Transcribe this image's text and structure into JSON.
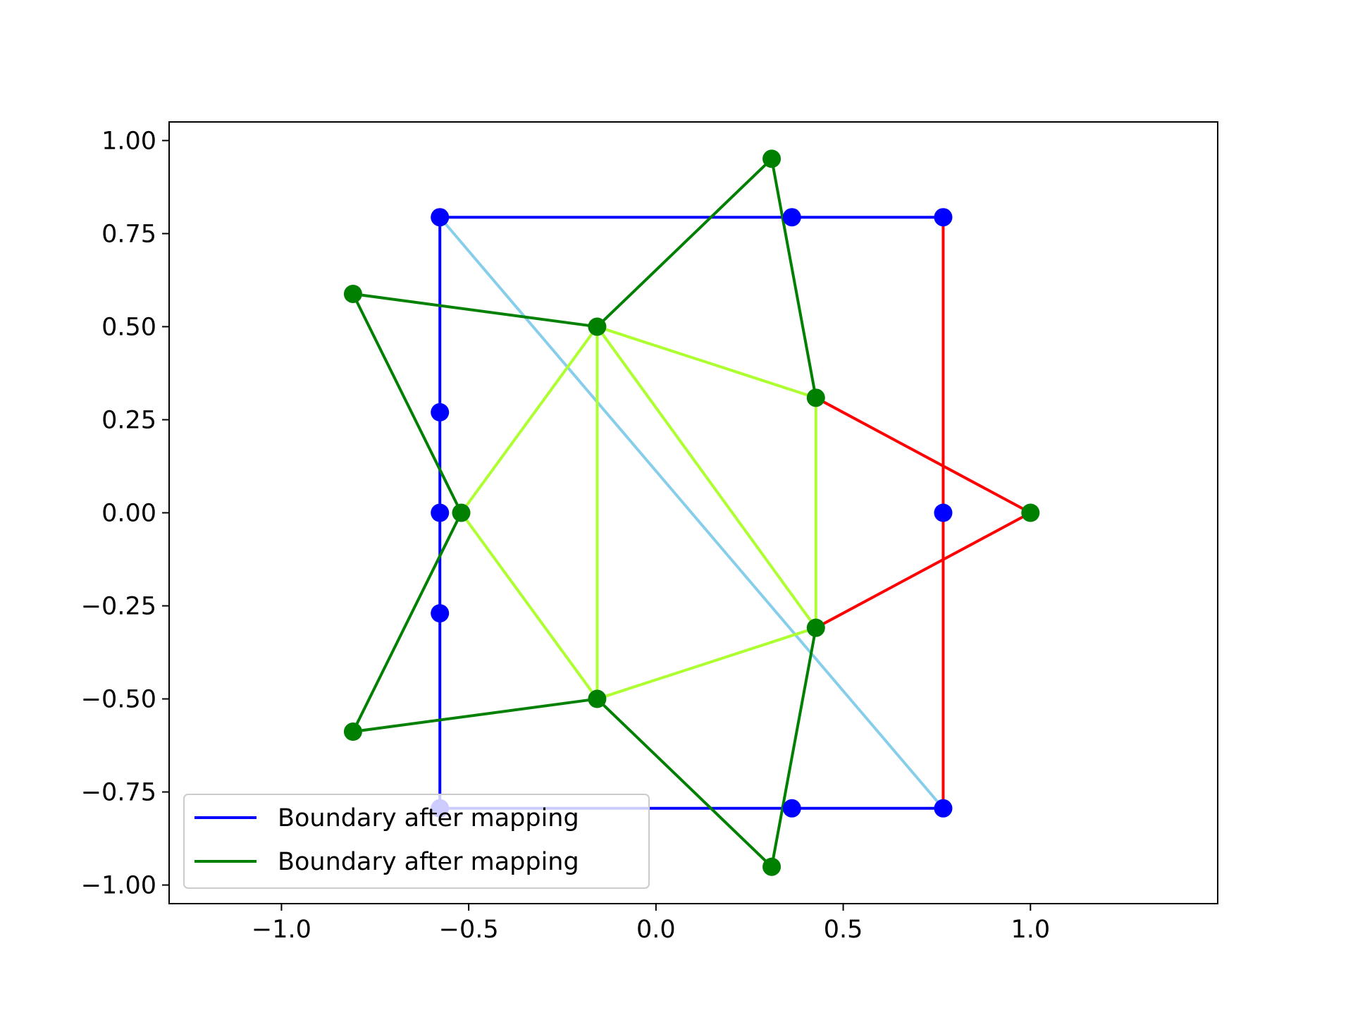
{
  "chart_data": {
    "type": "line",
    "title": "",
    "xlabel": "",
    "ylabel": "",
    "xlim": [
      -1.3,
      1.5
    ],
    "ylim": [
      -1.05,
      1.05
    ],
    "grid": false,
    "legend_position": "lower-left",
    "x_ticks": [
      -1.0,
      -0.5,
      0.0,
      0.5,
      1.0
    ],
    "x_tick_labels": [
      "−1.0",
      "−0.5",
      "0.0",
      "0.5",
      "1.0"
    ],
    "y_ticks": [
      1.0,
      0.75,
      0.5,
      0.25,
      0.0,
      -0.25,
      -0.5,
      -0.75,
      -1.0
    ],
    "y_tick_labels": [
      "1.00",
      "0.75",
      "0.50",
      "0.25",
      "0.00",
      "−0.25",
      "−0.50",
      "−0.75",
      "−1.00"
    ],
    "series": [
      {
        "color": "#87ceeb",
        "marker": false,
        "points": [
          [
            -0.577,
            0.794
          ],
          [
            0.767,
            -0.794
          ]
        ]
      },
      {
        "color": "#0000ff",
        "marker": false,
        "points": [
          [
            -0.577,
            -0.794
          ],
          [
            -0.577,
            0.794
          ],
          [
            0.767,
            0.794
          ]
        ]
      },
      {
        "color": "#0000ff",
        "marker": false,
        "points": [
          [
            -0.577,
            -0.794
          ],
          [
            0.767,
            -0.794
          ]
        ]
      },
      {
        "color": "#ff0000",
        "marker": false,
        "points": [
          [
            0.767,
            0.794
          ],
          [
            0.767,
            -0.794
          ]
        ]
      },
      {
        "color": "#ff0000",
        "marker": false,
        "points": [
          [
            0.427,
            0.309
          ],
          [
            1.0,
            0.0
          ],
          [
            0.427,
            -0.309
          ]
        ]
      },
      {
        "color": "#adff2f",
        "marker": false,
        "points": [
          [
            -0.157,
            0.5
          ],
          [
            0.427,
            0.309
          ],
          [
            0.427,
            -0.309
          ],
          [
            -0.157,
            -0.5
          ],
          [
            -0.52,
            0.0
          ],
          [
            -0.157,
            0.5
          ],
          [
            -0.157,
            -0.5
          ]
        ]
      },
      {
        "color": "#adff2f",
        "marker": false,
        "points": [
          [
            -0.157,
            0.5
          ],
          [
            0.427,
            -0.309
          ]
        ]
      },
      {
        "color": "#008000",
        "marker": false,
        "points": [
          [
            -0.52,
            0.0
          ],
          [
            -0.809,
            0.588
          ],
          [
            -0.157,
            0.5
          ],
          [
            0.309,
            0.951
          ],
          [
            0.427,
            0.309
          ]
        ]
      },
      {
        "color": "#008000",
        "marker": false,
        "points": [
          [
            -0.52,
            0.0
          ],
          [
            -0.809,
            -0.588
          ],
          [
            -0.157,
            -0.5
          ],
          [
            0.309,
            -0.951
          ],
          [
            0.427,
            -0.309
          ]
        ]
      },
      {
        "name": "Boundary after mapping",
        "color": "#0000ff",
        "marker": true,
        "line": false,
        "points": [
          [
            -0.577,
            0.794
          ],
          [
            0.363,
            0.794
          ],
          [
            0.767,
            0.794
          ],
          [
            -0.577,
            0.27
          ],
          [
            -0.577,
            0.0
          ],
          [
            0.767,
            0.0
          ],
          [
            -0.577,
            -0.27
          ],
          [
            -0.577,
            -0.794
          ],
          [
            0.363,
            -0.794
          ],
          [
            0.767,
            -0.794
          ]
        ]
      },
      {
        "name": "Boundary after mapping",
        "color": "#008000",
        "marker": true,
        "line": false,
        "points": [
          [
            0.309,
            0.951
          ],
          [
            -0.809,
            0.588
          ],
          [
            -0.157,
            0.5
          ],
          [
            0.427,
            0.309
          ],
          [
            -0.52,
            0.0
          ],
          [
            1.0,
            0.0
          ],
          [
            0.427,
            -0.309
          ],
          [
            -0.157,
            -0.5
          ],
          [
            -0.809,
            -0.588
          ],
          [
            0.309,
            -0.951
          ]
        ]
      }
    ],
    "legend": [
      {
        "label": "Boundary after mapping",
        "color": "#0000ff"
      },
      {
        "label": "Boundary after mapping",
        "color": "#008000"
      }
    ]
  }
}
